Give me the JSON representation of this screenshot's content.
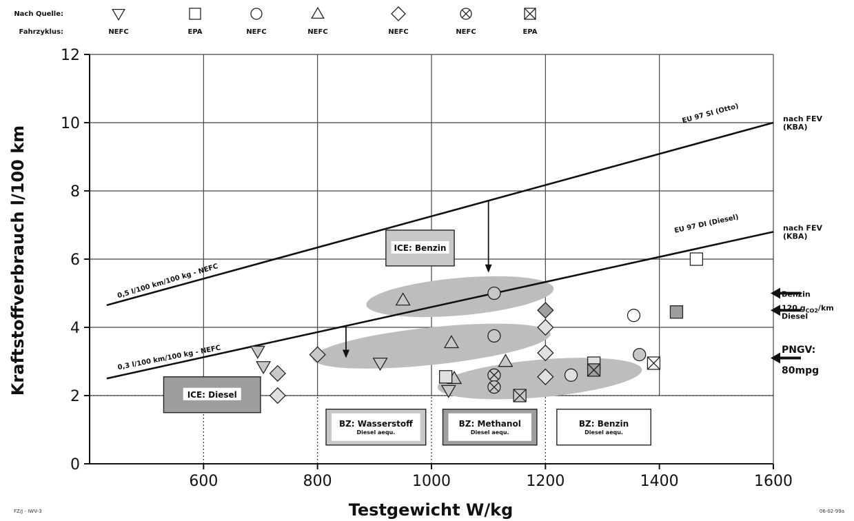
{
  "chart_data": {
    "type": "scatter",
    "xlabel": "Testgewicht W/kg",
    "ylabel": "Kraftstoffverbrauch l/100 km",
    "xlim": [
      400,
      1600
    ],
    "ylim": [
      0,
      12
    ],
    "x_ticks": [
      "600",
      "800",
      "1000",
      "1200",
      "1400",
      "1600"
    ],
    "y_ticks": [
      "0",
      "2",
      "4",
      "6",
      "8",
      "10",
      "12"
    ],
    "grid": true,
    "legend": {
      "header_source": "Nach Quelle:",
      "header_cycle": "Fahrzyklus:",
      "entries": [
        {
          "marker": "triangle-down",
          "cycle": "NEFC"
        },
        {
          "marker": "square",
          "cycle": "EPA"
        },
        {
          "marker": "circle",
          "cycle": "NEFC"
        },
        {
          "marker": "triangle-up",
          "cycle": "NEFC"
        },
        {
          "marker": "diamond",
          "cycle": "NEFC"
        },
        {
          "marker": "circle-x",
          "cycle": "NEFC"
        },
        {
          "marker": "square-x",
          "cycle": "EPA"
        }
      ]
    },
    "reference_lines": [
      {
        "label": "EU 97 SI (Otto)",
        "x": [
          430,
          1600
        ],
        "y": [
          4.65,
          10.0
        ],
        "right_label": "nach FEV (KBA)"
      },
      {
        "label": "EU 97 DI (Diesel)",
        "x": [
          430,
          1600
        ],
        "y": [
          2.5,
          6.8
        ],
        "right_label": "nach FEV (KBA)"
      },
      {
        "label": "0,5 l/100 km/100 kg - NEFC",
        "x": [
          450,
          640
        ],
        "y": [
          4.8,
          5.75
        ]
      },
      {
        "label": "0,3 l/100 km/100 kg - NEFC",
        "x": [
          450,
          650
        ],
        "y": [
          2.7,
          3.35
        ]
      }
    ],
    "horizontal_dotted": {
      "y": 2.0,
      "x": [
        400,
        1600
      ]
    },
    "vertical_dotted": [
      {
        "x": 600,
        "y": [
          0,
          2
        ]
      },
      {
        "x": 800,
        "y": [
          0,
          2
        ]
      },
      {
        "x": 1000,
        "y": [
          0,
          2
        ]
      },
      {
        "x": 1200,
        "y": [
          0,
          2
        ]
      }
    ],
    "arrows": [
      {
        "x": 1100,
        "from": 7.7,
        "to": 5.6
      },
      {
        "x": 850,
        "from": 4.05,
        "to": 3.1
      }
    ],
    "regions": [
      {
        "name": "Benzin",
        "cx": 1050,
        "cy": 4.9,
        "rx": 165,
        "ry": 0.55,
        "angle": -5
      },
      {
        "name": "mid",
        "cx": 1000,
        "cy": 3.45,
        "rx": 210,
        "ry": 0.55,
        "angle": -6
      },
      {
        "name": "low",
        "cx": 1190,
        "cy": 2.5,
        "rx": 180,
        "ry": 0.55,
        "angle": -5
      }
    ],
    "labeled_boxes": [
      {
        "title": "ICE: Benzin",
        "subtitle": "",
        "x": [
          920,
          1040
        ],
        "y": [
          5.8,
          6.85
        ],
        "fill": "#c8c8c8"
      },
      {
        "title": "ICE: Diesel",
        "subtitle": "",
        "x": [
          530,
          700
        ],
        "y": [
          1.5,
          2.55
        ],
        "fill": "#9e9e9e"
      },
      {
        "title": "BZ: Wasserstoff",
        "subtitle": "Diesel aequ.",
        "x": [
          815,
          990
        ],
        "y": [
          0.55,
          1.6
        ],
        "fill": "#c8c8c8"
      },
      {
        "title": "BZ: Methanol",
        "subtitle": "Diesel aequ.",
        "x": [
          1020,
          1185
        ],
        "y": [
          0.55,
          1.6
        ],
        "fill": "#9e9e9e"
      },
      {
        "title": "BZ: Benzin",
        "subtitle": "Diesel aequ.",
        "x": [
          1220,
          1385
        ],
        "y": [
          0.55,
          1.6
        ],
        "fill": "#ffffff"
      }
    ],
    "right_annotations": [
      {
        "text": "Benzin",
        "y": 5.0
      },
      {
        "text": "120 g",
        "sub": "CO2",
        "after": "/km",
        "y": 4.6
      },
      {
        "text": "Diesel",
        "y": 4.35
      },
      {
        "text": "PNGV:",
        "y": 3.35
      },
      {
        "text": "80mpg",
        "y": 2.75
      }
    ],
    "right_arrows_y": [
      5.0,
      4.5,
      3.1
    ],
    "points": [
      {
        "m": "triangle-down",
        "x": 695,
        "y": 3.3,
        "f": "#c8c8c8"
      },
      {
        "m": "triangle-down",
        "x": 705,
        "y": 2.85,
        "f": "#c8c8c8"
      },
      {
        "m": "triangle-down",
        "x": 910,
        "y": 2.95,
        "f": "#c8c8c8"
      },
      {
        "m": "triangle-down",
        "x": 1030,
        "y": 2.15,
        "f": "#c8c8c8"
      },
      {
        "m": "diamond",
        "x": 730,
        "y": 2.65,
        "f": "#c8c8c8"
      },
      {
        "m": "diamond",
        "x": 730,
        "y": 2.0,
        "f": "#e0e0e0"
      },
      {
        "m": "diamond",
        "x": 800,
        "y": 3.2,
        "f": "#c8c8c8"
      },
      {
        "m": "diamond",
        "x": 1200,
        "y": 4.5,
        "f": "#9e9e9e"
      },
      {
        "m": "diamond",
        "x": 1200,
        "y": 4.0,
        "f": "#e0e0e0"
      },
      {
        "m": "diamond",
        "x": 1200,
        "y": 3.25,
        "f": "#e0e0e0"
      },
      {
        "m": "diamond",
        "x": 1200,
        "y": 2.55,
        "f": "#e0e0e0"
      },
      {
        "m": "triangle-up",
        "x": 950,
        "y": 4.8,
        "f": "#c8c8c8"
      },
      {
        "m": "triangle-up",
        "x": 1035,
        "y": 3.55,
        "f": "#c8c8c8"
      },
      {
        "m": "triangle-up",
        "x": 1040,
        "y": 2.5,
        "f": "#c8c8c8"
      },
      {
        "m": "triangle-up",
        "x": 1130,
        "y": 3.0,
        "f": "#c8c8c8"
      },
      {
        "m": "circle",
        "x": 1110,
        "y": 5.0,
        "f": "#c8c8c8"
      },
      {
        "m": "circle",
        "x": 1110,
        "y": 3.75,
        "f": "#c8c8c8"
      },
      {
        "m": "circle",
        "x": 1245,
        "y": 2.6,
        "f": "#e0e0e0"
      },
      {
        "m": "circle",
        "x": 1355,
        "y": 4.35,
        "f": "#ffffff"
      },
      {
        "m": "circle",
        "x": 1365,
        "y": 3.2,
        "f": "#c8c8c8"
      },
      {
        "m": "square",
        "x": 1025,
        "y": 2.55,
        "f": "#e0e0e0"
      },
      {
        "m": "square",
        "x": 1285,
        "y": 2.95,
        "f": "#e0e0e0"
      },
      {
        "m": "square",
        "x": 1430,
        "y": 4.45,
        "f": "#9e9e9e"
      },
      {
        "m": "square",
        "x": 1465,
        "y": 6.0,
        "f": "#ffffff"
      },
      {
        "m": "circle-x",
        "x": 1110,
        "y": 2.6,
        "f": "#c8c8c8"
      },
      {
        "m": "circle-x",
        "x": 1110,
        "y": 2.25,
        "f": "#c8c8c8"
      },
      {
        "m": "square-x",
        "x": 1155,
        "y": 2.0,
        "f": "#c8c8c8"
      },
      {
        "m": "square-x",
        "x": 1285,
        "y": 2.75,
        "f": "#9e9e9e"
      },
      {
        "m": "square-x",
        "x": 1390,
        "y": 2.95,
        "f": "#ffffff"
      }
    ]
  },
  "footer": {
    "left": "FZ/J - IWV-3",
    "right": "06-02-99a"
  }
}
